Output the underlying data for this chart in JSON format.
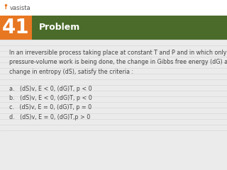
{
  "bg_color": "#ebebeb",
  "header_bg": "#4a6b2a",
  "number_bg": "#e87722",
  "number_text": "41",
  "header_text": "Problem",
  "body_text": "In an irreversible process taking place at constant T and P and in which only\npressure-volume work is being done, the change in Gibbs free energy (dG) and\nchange in entropy (dS), satisfy the criteria :",
  "options": [
    "a.   (dS)v, E < 0, (dG)T, p < 0",
    "b.   (dS)v, E < 0, (dG)T, p < 0",
    "c.   (dS)v, E = 0, (dG)T, p = 0",
    "d.   (dS)v, E = 0, (dG)T,p > 0"
  ],
  "logo_text": "vasista",
  "number_fontsize": 20,
  "header_fontsize": 9,
  "body_fontsize": 5.8,
  "option_fontsize": 5.8,
  "logo_fontsize": 6.0,
  "line_color": "#d8d8d8",
  "text_color": "#444444",
  "logo_color": "#555555"
}
